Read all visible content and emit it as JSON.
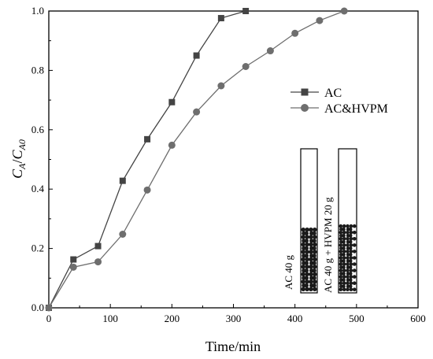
{
  "chart_data": {
    "type": "line",
    "xlabel": "Time/min",
    "ylabel": "C_A/C_A0",
    "ylabel_parts": {
      "main": "C",
      "sub": "A",
      "slash": "/",
      "main2": "C",
      "sub2": "A0"
    },
    "xlim": [
      0,
      600
    ],
    "ylim": [
      0,
      1.0
    ],
    "xticks": [
      0,
      100,
      200,
      300,
      400,
      500,
      600
    ],
    "xtick_labels": [
      "0",
      "100",
      "200",
      "300",
      "400",
      "500",
      "600"
    ],
    "yticks": [
      0,
      0.2,
      0.4,
      0.6,
      0.8,
      1.0
    ],
    "ytick_labels": [
      "0.0",
      "0.2",
      "0.4",
      "0.6",
      "0.8",
      "1.0"
    ],
    "grid": false,
    "legend_position": "right-middle",
    "series": [
      {
        "name": "AC",
        "marker": "square",
        "color": "#444444",
        "x": [
          0,
          40,
          80,
          120,
          160,
          200,
          240,
          280,
          320
        ],
        "y": [
          0.0,
          0.163,
          0.208,
          0.428,
          0.568,
          0.693,
          0.85,
          0.976,
          1.0
        ]
      },
      {
        "name": "AC&HVPM",
        "marker": "circle",
        "color": "#6e6e6e",
        "x": [
          0,
          40,
          80,
          120,
          160,
          200,
          240,
          280,
          320,
          360,
          400,
          440,
          480
        ],
        "y": [
          0.0,
          0.137,
          0.155,
          0.248,
          0.397,
          0.548,
          0.66,
          0.748,
          0.813,
          0.866,
          0.925,
          0.968,
          1.0
        ]
      }
    ],
    "inset": {
      "columns": [
        {
          "label": "AC 40 g"
        },
        {
          "label": "AC 40 g + HVPM 20 g"
        }
      ]
    }
  }
}
